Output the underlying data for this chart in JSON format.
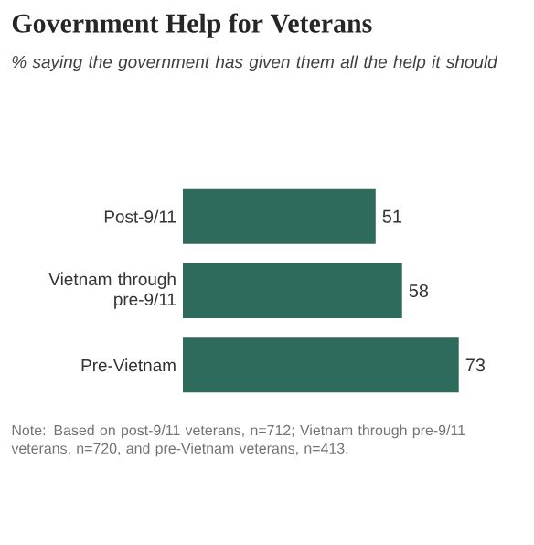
{
  "chart_data": {
    "type": "bar",
    "orientation": "horizontal",
    "title": "Government Help for Veterans",
    "subtitle": "% saying the government has given them all the help it should",
    "categories": [
      "Post-9/11",
      "Vietnam through pre-9/11",
      "Pre-Vietnam"
    ],
    "values": [
      51,
      58,
      73
    ],
    "color": "#2f6b5d",
    "data_labels": true,
    "annotations": [
      "Note: Based on post-9/11 veterans, n=712; Vietnam through pre-9/11 veterans, n=720, and pre-Vietnam veterans, n=413."
    ]
  }
}
